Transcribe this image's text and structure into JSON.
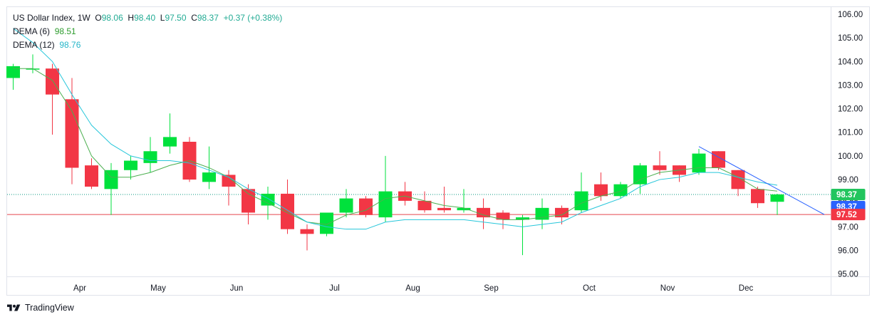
{
  "legend": {
    "symbol": "US Dollar Index, 1W",
    "open_label": "O",
    "open": "98.06",
    "high_label": "H",
    "high": "98.40",
    "low_label": "L",
    "low": "97.50",
    "close_label": "C",
    "close": "98.37",
    "change": "+0.37 (+0.38%)",
    "dema6_label": "DEMA (6)",
    "dema6_value": "98.51",
    "dema12_label": "DEMA (12)",
    "dema12_value": "98.76"
  },
  "price_tags": [
    {
      "text": "98.37",
      "value": 98.37,
      "color": "#22c55e"
    },
    {
      "text": "98.37",
      "value": 98.37,
      "color": "#2962ff",
      "offset": 1
    },
    {
      "text": "97.52",
      "value": 97.52,
      "color": "#f23645"
    }
  ],
  "footer": {
    "brand": "TradingView"
  },
  "colors": {
    "up": "#00e13c",
    "down": "#f23645",
    "dema6": "#4caf50",
    "dema12": "#26c6da",
    "trend": "#2962ff",
    "last_line": "#089981",
    "low_line": "#e5484d"
  },
  "chart_data": {
    "type": "candlestick",
    "title": "US Dollar Index, 1W",
    "ylim": [
      94.9,
      106.3
    ],
    "y_ticks": [
      95.0,
      96.0,
      97.0,
      98.0,
      99.0,
      100.0,
      101.0,
      102.0,
      103.0,
      104.0,
      105.0,
      106.0
    ],
    "x_labels": [
      "Apr",
      "May",
      "Jun",
      "Jul",
      "Aug",
      "Sep",
      "Oct",
      "Nov",
      "Dec"
    ],
    "x_label_index": [
      3.4,
      7.4,
      11.4,
      16.4,
      20.4,
      24.4,
      29.4,
      33.4,
      37.4
    ],
    "candles": [
      {
        "o": 103.3,
        "h": 103.9,
        "l": 102.8,
        "c": 103.8
      },
      {
        "o": 103.7,
        "h": 104.3,
        "l": 103.5,
        "c": 103.7
      },
      {
        "o": 103.7,
        "h": 103.9,
        "l": 100.9,
        "c": 102.6
      },
      {
        "o": 102.4,
        "h": 103.3,
        "l": 98.8,
        "c": 99.5
      },
      {
        "o": 99.6,
        "h": 99.9,
        "l": 98.6,
        "c": 98.7
      },
      {
        "o": 98.6,
        "h": 99.7,
        "l": 97.5,
        "c": 99.4
      },
      {
        "o": 99.4,
        "h": 100.0,
        "l": 99.0,
        "c": 99.8
      },
      {
        "o": 99.7,
        "h": 100.8,
        "l": 99.3,
        "c": 100.2
      },
      {
        "o": 100.4,
        "h": 101.8,
        "l": 100.1,
        "c": 100.8
      },
      {
        "o": 100.6,
        "h": 100.8,
        "l": 98.9,
        "c": 99.0
      },
      {
        "o": 98.9,
        "h": 100.4,
        "l": 98.6,
        "c": 99.3
      },
      {
        "o": 99.2,
        "h": 99.4,
        "l": 97.9,
        "c": 98.7
      },
      {
        "o": 98.6,
        "h": 98.8,
        "l": 97.1,
        "c": 97.6
      },
      {
        "o": 97.9,
        "h": 98.7,
        "l": 97.3,
        "c": 98.4
      },
      {
        "o": 98.4,
        "h": 99.0,
        "l": 96.7,
        "c": 96.9
      },
      {
        "o": 96.9,
        "h": 97.1,
        "l": 96.0,
        "c": 96.7
      },
      {
        "o": 96.7,
        "h": 97.6,
        "l": 96.6,
        "c": 97.6
      },
      {
        "o": 97.6,
        "h": 98.6,
        "l": 97.4,
        "c": 98.2
      },
      {
        "o": 98.2,
        "h": 98.3,
        "l": 97.4,
        "c": 97.5
      },
      {
        "o": 97.4,
        "h": 100.0,
        "l": 97.2,
        "c": 98.5
      },
      {
        "o": 98.5,
        "h": 98.9,
        "l": 97.9,
        "c": 98.1
      },
      {
        "o": 98.1,
        "h": 98.5,
        "l": 97.6,
        "c": 97.7
      },
      {
        "o": 97.8,
        "h": 98.7,
        "l": 97.6,
        "c": 97.7
      },
      {
        "o": 97.7,
        "h": 98.6,
        "l": 97.6,
        "c": 97.8
      },
      {
        "o": 97.8,
        "h": 98.2,
        "l": 96.9,
        "c": 97.4
      },
      {
        "o": 97.6,
        "h": 97.7,
        "l": 96.9,
        "c": 97.3
      },
      {
        "o": 97.3,
        "h": 97.5,
        "l": 95.8,
        "c": 97.4
      },
      {
        "o": 97.3,
        "h": 98.2,
        "l": 96.9,
        "c": 97.8
      },
      {
        "o": 97.8,
        "h": 97.9,
        "l": 97.1,
        "c": 97.4
      },
      {
        "o": 97.7,
        "h": 99.3,
        "l": 97.6,
        "c": 98.5
      },
      {
        "o": 98.8,
        "h": 99.3,
        "l": 98.1,
        "c": 98.3
      },
      {
        "o": 98.3,
        "h": 98.9,
        "l": 98.2,
        "c": 98.8
      },
      {
        "o": 98.8,
        "h": 99.7,
        "l": 98.4,
        "c": 99.6
      },
      {
        "o": 99.6,
        "h": 100.2,
        "l": 99.2,
        "c": 99.4
      },
      {
        "o": 99.6,
        "h": 99.6,
        "l": 98.9,
        "c": 99.2
      },
      {
        "o": 99.3,
        "h": 100.3,
        "l": 99.2,
        "c": 100.1
      },
      {
        "o": 100.2,
        "h": 100.2,
        "l": 99.4,
        "c": 99.5
      },
      {
        "o": 99.4,
        "h": 99.4,
        "l": 98.3,
        "c": 98.6
      },
      {
        "o": 98.6,
        "h": 98.7,
        "l": 97.8,
        "c": 98.0
      },
      {
        "o": 98.06,
        "h": 98.4,
        "l": 97.5,
        "c": 98.37
      }
    ],
    "series": [
      {
        "name": "DEMA (6)",
        "values": [
          103.7,
          103.7,
          103.2,
          101.9,
          100.0,
          99.1,
          99.1,
          99.3,
          99.6,
          99.8,
          99.5,
          99.1,
          98.4,
          98.0,
          97.6,
          97.2,
          97.1,
          97.5,
          97.7,
          98.2,
          98.3,
          98.1,
          97.9,
          97.8,
          97.5,
          97.3,
          97.3,
          97.4,
          97.5,
          98.0,
          98.3,
          98.5,
          99.0,
          99.3,
          99.4,
          99.5,
          99.5,
          99.1,
          98.6,
          98.51
        ]
      },
      {
        "name": "DEMA (12)",
        "values": [
          105.4,
          104.8,
          104.0,
          102.6,
          101.3,
          100.5,
          100.0,
          99.8,
          99.8,
          99.7,
          99.4,
          99.1,
          98.6,
          98.2,
          97.7,
          97.2,
          97.0,
          96.9,
          96.9,
          97.2,
          97.3,
          97.3,
          97.3,
          97.3,
          97.2,
          97.1,
          97.0,
          97.1,
          97.2,
          97.6,
          97.9,
          98.2,
          98.7,
          99.0,
          99.1,
          99.3,
          99.3,
          99.1,
          98.9,
          98.76
        ]
      }
    ],
    "trendline": {
      "from": [
        35,
        100.4
      ],
      "to": [
        41.4,
        97.52
      ]
    }
  }
}
